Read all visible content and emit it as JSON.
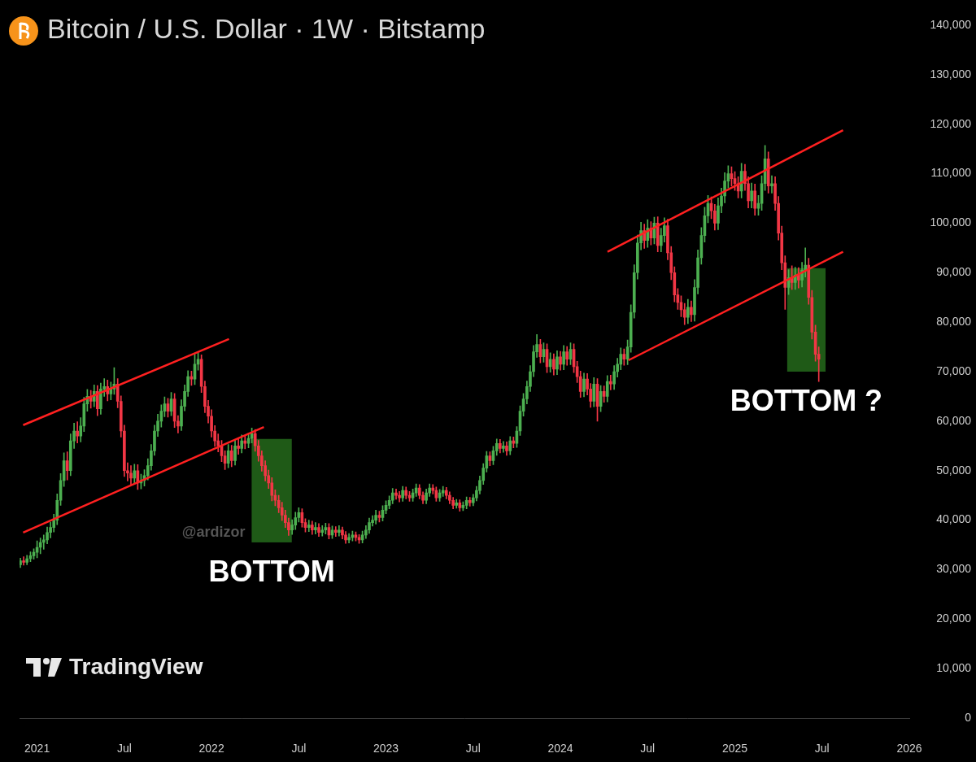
{
  "chart_data": {
    "type": "candlestick",
    "title": "Bitcoin / U.S. Dollar · 1W · Bitstamp",
    "x": [
      2020.904,
      2020.923,
      2020.942,
      2020.962,
      2020.981,
      2021,
      2021.019,
      2021.038,
      2021.058,
      2021.077,
      2021.096,
      2021.115,
      2021.135,
      2021.154,
      2021.173,
      2021.192,
      2021.212,
      2021.231,
      2021.25,
      2021.269,
      2021.288,
      2021.308,
      2021.327,
      2021.346,
      2021.365,
      2021.385,
      2021.404,
      2021.423,
      2021.442,
      2021.462,
      2021.481,
      2021.5,
      2021.519,
      2021.538,
      2021.558,
      2021.577,
      2021.596,
      2021.615,
      2021.635,
      2021.654,
      2021.673,
      2021.692,
      2021.712,
      2021.731,
      2021.75,
      2021.769,
      2021.788,
      2021.808,
      2021.827,
      2021.846,
      2021.865,
      2021.885,
      2021.904,
      2021.923,
      2021.942,
      2021.962,
      2021.981,
      2022,
      2022.019,
      2022.038,
      2022.058,
      2022.077,
      2022.096,
      2022.115,
      2022.135,
      2022.154,
      2022.173,
      2022.192,
      2022.212,
      2022.231,
      2022.25,
      2022.269,
      2022.288,
      2022.308,
      2022.327,
      2022.346,
      2022.365,
      2022.385,
      2022.404,
      2022.423,
      2022.442,
      2022.462,
      2022.481,
      2022.5,
      2022.519,
      2022.538,
      2022.558,
      2022.577,
      2022.596,
      2022.615,
      2022.635,
      2022.654,
      2022.673,
      2022.692,
      2022.712,
      2022.731,
      2022.75,
      2022.769,
      2022.788,
      2022.808,
      2022.827,
      2022.846,
      2022.865,
      2022.885,
      2022.904,
      2022.923,
      2022.942,
      2022.962,
      2022.981,
      2023,
      2023.019,
      2023.038,
      2023.058,
      2023.077,
      2023.096,
      2023.115,
      2023.135,
      2023.154,
      2023.173,
      2023.192,
      2023.212,
      2023.231,
      2023.25,
      2023.269,
      2023.288,
      2023.308,
      2023.327,
      2023.346,
      2023.365,
      2023.385,
      2023.404,
      2023.423,
      2023.442,
      2023.462,
      2023.481,
      2023.5,
      2023.519,
      2023.538,
      2023.558,
      2023.577,
      2023.596,
      2023.615,
      2023.635,
      2023.654,
      2023.673,
      2023.692,
      2023.712,
      2023.731,
      2023.75,
      2023.769,
      2023.788,
      2023.808,
      2023.827,
      2023.846,
      2023.865,
      2023.885,
      2023.904,
      2023.923,
      2023.942,
      2023.962,
      2023.981,
      2024,
      2024.019,
      2024.038,
      2024.058,
      2024.077,
      2024.096,
      2024.115,
      2024.135,
      2024.154,
      2024.173,
      2024.192,
      2024.212,
      2024.231,
      2024.25,
      2024.269,
      2024.288,
      2024.308,
      2024.327,
      2024.346,
      2024.365,
      2024.385,
      2024.404,
      2024.423,
      2024.442,
      2024.462,
      2024.481,
      2024.5,
      2024.519,
      2024.538,
      2024.558,
      2024.577,
      2024.596,
      2024.615,
      2024.635,
      2024.654,
      2024.673,
      2024.692,
      2024.712,
      2024.731,
      2024.75,
      2024.769,
      2024.788,
      2024.808,
      2024.827,
      2024.846,
      2024.865,
      2024.885,
      2024.904,
      2024.923,
      2024.942,
      2024.962,
      2024.981,
      2025,
      2025.019,
      2025.038,
      2025.058,
      2025.077,
      2025.096,
      2025.115,
      2025.135,
      2025.154,
      2025.173,
      2025.192,
      2025.212,
      2025.231,
      2025.25,
      2025.269,
      2025.288,
      2025.308,
      2025.327,
      2025.346,
      2025.365,
      2025.385,
      2025.404,
      2025.423,
      2025.442,
      2025.462,
      2025.481
    ],
    "open": [
      31000,
      31800,
      31500,
      32200,
      32800,
      33500,
      34500,
      35500,
      36000,
      37500,
      38500,
      40000,
      44000,
      48000,
      52000,
      50000,
      56000,
      58000,
      57000,
      59000,
      63500,
      65000,
      64000,
      66000,
      62500,
      66500,
      67000,
      65500,
      66500,
      67500,
      64000,
      58000,
      50000,
      49500,
      48500,
      50000,
      47500,
      48000,
      49000,
      51000,
      54000,
      58000,
      60000,
      62000,
      63500,
      62000,
      64500,
      60000,
      59000,
      63000,
      66000,
      69000,
      68500,
      71500,
      72500,
      67000,
      63000,
      61000,
      58000,
      56000,
      55000,
      53000,
      51500,
      54000,
      52000,
      55000,
      54500,
      56000,
      55500,
      56500,
      57500,
      55000,
      53000,
      51000,
      49000,
      47500,
      45000,
      44000,
      42500,
      41000,
      39500,
      38000,
      39000,
      40500,
      41500,
      39500,
      38500,
      39000,
      38000,
      38500,
      37500,
      38000,
      38500,
      37000,
      38000,
      37500,
      38000,
      37000,
      36000,
      36500,
      37000,
      36500,
      36000,
      37000,
      38000,
      39500,
      40000,
      41000,
      40500,
      42000,
      43000,
      44000,
      45500,
      45000,
      44500,
      46000,
      45000,
      44500,
      45500,
      46500,
      45000,
      44000,
      45500,
      46500,
      46000,
      44500,
      45500,
      46000,
      45000,
      44000,
      43000,
      43500,
      42500,
      43000,
      44000,
      43500,
      44500,
      46000,
      48000,
      50500,
      53000,
      52000,
      54000,
      55500,
      54500,
      55000,
      54000,
      56000,
      55500,
      58000,
      62000,
      64500,
      67000,
      70000,
      74000,
      75500,
      73000,
      74500,
      71000,
      72500,
      70500,
      73000,
      71500,
      74000,
      72500,
      74500,
      71000,
      69000,
      66000,
      68500,
      66500,
      64000,
      67500,
      63000,
      66000,
      65000,
      68000,
      67500,
      70000,
      71500,
      73500,
      72500,
      75000,
      82000,
      90000,
      96000,
      98500,
      96500,
      99000,
      97000,
      100000,
      95500,
      97500,
      99500,
      94000,
      90000,
      85500,
      84000,
      82500,
      81000,
      83000,
      81500,
      87000,
      93000,
      97500,
      101500,
      104000,
      102500,
      100000,
      103500,
      105500,
      108500,
      110000,
      109000,
      108000,
      106500,
      110500,
      108000,
      104500,
      106500,
      103000,
      104000,
      108000,
      113000,
      107500,
      108000,
      104000,
      98000,
      92000,
      87000,
      89000,
      88000,
      89500,
      88500,
      90500,
      91500,
      85000,
      78000,
      73500
    ],
    "high": [
      32300,
      32600,
      32900,
      33600,
      34200,
      35800,
      36400,
      37000,
      38600,
      39600,
      41200,
      45300,
      49400,
      53600,
      53800,
      57400,
      59600,
      59900,
      60700,
      64800,
      66400,
      66200,
      67300,
      67200,
      67700,
      68600,
      68300,
      67900,
      70800,
      68600,
      65100,
      59200,
      51600,
      51000,
      51300,
      51200,
      49300,
      50200,
      52400,
      55300,
      59200,
      61400,
      63300,
      64900,
      64600,
      65800,
      65600,
      61100,
      64300,
      67300,
      70200,
      70100,
      73500,
      73800,
      73400,
      68100,
      64200,
      62300,
      59100,
      57400,
      56100,
      54000,
      55300,
      55100,
      56200,
      56400,
      57200,
      57100,
      57600,
      58600,
      58300,
      56100,
      54000,
      52000,
      50100,
      48600,
      46100,
      45000,
      43600,
      42000,
      40400,
      40100,
      41600,
      42500,
      42300,
      40300,
      40000,
      39800,
      39500,
      39300,
      38900,
      39400,
      39300,
      38800,
      38700,
      38900,
      38600,
      37700,
      37300,
      37800,
      37600,
      37100,
      37800,
      38900,
      40400,
      40900,
      42000,
      41800,
      42900,
      43900,
      44900,
      46400,
      46300,
      45800,
      46800,
      46700,
      45800,
      46300,
      47300,
      47200,
      45700,
      46300,
      47300,
      47200,
      46700,
      46200,
      46800,
      46600,
      45700,
      44600,
      44200,
      44100,
      43700,
      44700,
      44600,
      45200,
      46800,
      48900,
      51400,
      53900,
      53800,
      54900,
      56400,
      56300,
      55900,
      55800,
      56900,
      56800,
      58900,
      63100,
      65600,
      68100,
      71200,
      75300,
      77500,
      76500,
      75800,
      75600,
      73800,
      73600,
      74200,
      74100,
      75300,
      75100,
      75800,
      75600,
      72100,
      70100,
      69700,
      69600,
      67600,
      68800,
      68600,
      67200,
      67100,
      69200,
      69300,
      71200,
      72700,
      74800,
      74600,
      76400,
      83500,
      91600,
      97600,
      100200,
      99800,
      100700,
      100300,
      101200,
      101300,
      99000,
      101100,
      100800,
      95300,
      91200,
      86800,
      85300,
      83800,
      84600,
      84300,
      88600,
      94600,
      99100,
      103200,
      105600,
      105300,
      103800,
      105100,
      107100,
      110200,
      111600,
      111400,
      110400,
      109400,
      112100,
      111900,
      109400,
      108100,
      107900,
      105600,
      109600,
      115700,
      114400,
      109600,
      109400,
      105400,
      99400,
      93400,
      90600,
      91400,
      91100,
      91000,
      92100,
      95000,
      92900,
      86400,
      79400,
      75000
    ],
    "low": [
      30400,
      30900,
      31000,
      31600,
      32100,
      32400,
      33200,
      34100,
      35200,
      36400,
      37600,
      39100,
      43000,
      46800,
      48100,
      49000,
      54500,
      55600,
      55800,
      57900,
      62000,
      62600,
      62900,
      61100,
      61400,
      65000,
      64100,
      64300,
      65400,
      62700,
      56800,
      48800,
      47900,
      47200,
      47300,
      46200,
      46300,
      46900,
      48100,
      50100,
      53100,
      56900,
      58800,
      60900,
      60800,
      61100,
      58700,
      57600,
      58100,
      62100,
      65000,
      67200,
      67400,
      70300,
      65800,
      61700,
      59600,
      56800,
      54900,
      53800,
      51800,
      50200,
      50600,
      50800,
      51100,
      53300,
      53600,
      54400,
      54600,
      55600,
      53900,
      51900,
      49900,
      47900,
      46400,
      43900,
      42900,
      41500,
      39900,
      38500,
      36900,
      37100,
      38100,
      39600,
      38600,
      37600,
      37700,
      37100,
      37200,
      36700,
      36800,
      37200,
      36200,
      36300,
      36700,
      36800,
      36200,
      35300,
      35400,
      35800,
      35800,
      35300,
      35400,
      36300,
      37300,
      38800,
      39200,
      39600,
      39800,
      41300,
      42300,
      43300,
      44200,
      43700,
      43800,
      44300,
      43800,
      43800,
      44800,
      44300,
      43300,
      43300,
      44800,
      45300,
      43800,
      43800,
      44800,
      44300,
      43300,
      42300,
      42400,
      41800,
      41900,
      42300,
      42800,
      42900,
      43900,
      45300,
      47200,
      49700,
      51000,
      51200,
      53100,
      53600,
      53700,
      53100,
      53200,
      54600,
      54700,
      57100,
      61000,
      63500,
      66000,
      69000,
      72900,
      71800,
      71900,
      69800,
      69900,
      69300,
      69400,
      70300,
      70400,
      71300,
      71400,
      69800,
      67800,
      64800,
      64900,
      65300,
      62800,
      62900,
      60000,
      61900,
      63800,
      63900,
      66300,
      66400,
      68900,
      70400,
      71300,
      71400,
      73900,
      80800,
      88700,
      94600,
      94900,
      95100,
      95600,
      95800,
      94200,
      94200,
      96200,
      92600,
      88600,
      84100,
      82600,
      81100,
      79500,
      79700,
      80100,
      80200,
      85700,
      91700,
      96200,
      100100,
      100900,
      98600,
      98700,
      102100,
      104100,
      107100,
      107500,
      106600,
      105100,
      105100,
      106600,
      103100,
      103100,
      101600,
      101600,
      102600,
      106600,
      106100,
      106100,
      102600,
      96600,
      90600,
      82600,
      85600,
      86600,
      86600,
      86900,
      87100,
      89100,
      83600,
      76600,
      72100,
      68000
    ],
    "close": [
      31800,
      31500,
      32200,
      32800,
      33500,
      34500,
      35500,
      36000,
      37500,
      38500,
      40000,
      44000,
      48000,
      52000,
      50000,
      56000,
      58000,
      57000,
      59000,
      63500,
      65000,
      64000,
      66000,
      62500,
      66500,
      67000,
      65500,
      66500,
      67500,
      64000,
      58000,
      50000,
      49500,
      48500,
      50000,
      47500,
      48000,
      49000,
      51000,
      54000,
      58000,
      60000,
      62000,
      63500,
      62000,
      64500,
      60000,
      59000,
      63000,
      66000,
      69000,
      68500,
      71500,
      72500,
      67000,
      63000,
      61000,
      58000,
      56000,
      55000,
      53000,
      51500,
      54000,
      52000,
      55000,
      54500,
      56000,
      55500,
      56500,
      57500,
      55000,
      53000,
      51000,
      49000,
      47500,
      45000,
      44000,
      42500,
      41000,
      39500,
      38000,
      39000,
      40500,
      41500,
      39500,
      38500,
      39000,
      38000,
      38500,
      37500,
      38000,
      38500,
      37000,
      38000,
      37500,
      38000,
      37000,
      36000,
      36500,
      37000,
      36500,
      36000,
      37000,
      38000,
      39500,
      40000,
      41000,
      40500,
      42000,
      43000,
      44000,
      45500,
      45000,
      44500,
      46000,
      45000,
      44500,
      45500,
      46500,
      45000,
      44000,
      45500,
      46500,
      46000,
      44500,
      45500,
      46000,
      45000,
      44000,
      43000,
      43500,
      42500,
      43000,
      44000,
      43500,
      44500,
      46000,
      48000,
      50500,
      53000,
      52000,
      54000,
      55500,
      54500,
      55000,
      54000,
      56000,
      55500,
      58000,
      62000,
      64500,
      67000,
      70000,
      74000,
      75500,
      73000,
      74500,
      71000,
      72500,
      70500,
      73000,
      71500,
      74000,
      72500,
      74500,
      71000,
      69000,
      66000,
      68500,
      66500,
      64000,
      67500,
      63000,
      66000,
      65000,
      68000,
      67500,
      70000,
      71500,
      73500,
      72500,
      75000,
      82000,
      90000,
      96000,
      98500,
      96500,
      99000,
      97000,
      100000,
      95500,
      97500,
      99500,
      94000,
      90000,
      85500,
      84000,
      82500,
      81000,
      83000,
      81500,
      87000,
      93000,
      97500,
      101500,
      104000,
      102500,
      100000,
      103500,
      105500,
      108500,
      110000,
      109000,
      108000,
      106500,
      110500,
      108000,
      104500,
      106500,
      103000,
      104000,
      108000,
      113000,
      107500,
      108000,
      104000,
      98000,
      92000,
      87000,
      89000,
      88000,
      89500,
      88500,
      90500,
      91500,
      85000,
      78000,
      73500,
      72500
    ],
    "color": {
      "up": "#4caf50",
      "down": "#f23645"
    },
    "xlim": [
      2020.9,
      2026
    ],
    "xticks": [
      2021,
      {
        "value": 2021.5,
        "label": "Jul"
      },
      2022,
      {
        "value": 2022.5,
        "label": "Jul"
      },
      2023,
      {
        "value": 2023.5,
        "label": "Jul"
      },
      2024,
      {
        "value": 2024.5,
        "label": "Jul"
      },
      2025,
      {
        "value": 2025.5,
        "label": "Jul"
      },
      2026
    ],
    "ylim": [
      0,
      140000
    ],
    "yticks": [
      0,
      {
        "value": 10000,
        "label": "10,000"
      },
      {
        "value": 20000,
        "label": "20,000"
      },
      {
        "value": 30000,
        "label": "30,000"
      },
      {
        "value": 40000,
        "label": "40,000"
      },
      {
        "value": 50000,
        "label": "50,000"
      },
      {
        "value": 60000,
        "label": "60,000"
      },
      {
        "value": 70000,
        "label": "70,000"
      },
      {
        "value": 80000,
        "label": "80,000"
      },
      {
        "value": 90000,
        "label": "90,000"
      },
      {
        "value": 100000,
        "label": "100,000"
      },
      {
        "value": 110000,
        "label": "110,000"
      },
      {
        "value": 120000,
        "label": "120,000"
      },
      {
        "value": 130000,
        "label": "130,000"
      },
      {
        "value": 140000,
        "label": "140,000"
      }
    ],
    "grid": false,
    "trend_lines": [
      {
        "color": "#ff2020",
        "x": [
          2020.92,
          2022.1
        ],
        "y": [
          59200,
          76600
        ]
      },
      {
        "color": "#ff2020",
        "x": [
          2020.92,
          2022.3
        ],
        "y": [
          37500,
          58800
        ]
      },
      {
        "color": "#ff2020",
        "x": [
          2024.27,
          2025.62
        ],
        "y": [
          94200,
          118800
        ]
      },
      {
        "color": "#ff2020",
        "x": [
          2024.39,
          2025.62
        ],
        "y": [
          72300,
          94200
        ]
      }
    ],
    "highlights": [
      {
        "color": "#1f5a17",
        "x": [
          2022.23,
          2022.46
        ],
        "y": [
          35500,
          56400
        ],
        "label": "BOTTOM"
      },
      {
        "color": "#1f5a17",
        "x": [
          2025.3,
          2025.52
        ],
        "y": [
          70000,
          90900
        ],
        "label": "BOTTOM ?"
      }
    ],
    "watermark": "@ardizor",
    "logo": "TradingView"
  }
}
